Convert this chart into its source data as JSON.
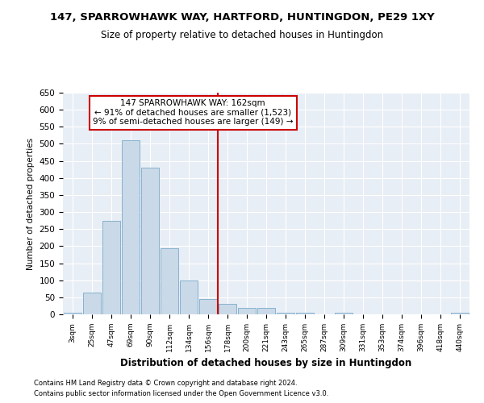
{
  "title": "147, SPARROWHAWK WAY, HARTFORD, HUNTINGDON, PE29 1XY",
  "subtitle": "Size of property relative to detached houses in Huntingdon",
  "xlabel": "Distribution of detached houses by size in Huntingdon",
  "ylabel": "Number of detached properties",
  "bar_color": "#c9d9e8",
  "bar_edge_color": "#7aaac8",
  "background_color": "#e8eef5",
  "grid_color": "#ffffff",
  "vline_color": "#cc0000",
  "vline_x_index": 7.5,
  "annotation_line1": "147 SPARROWHAWK WAY: 162sqm",
  "annotation_line2": "← 91% of detached houses are smaller (1,523)",
  "annotation_line3": "9% of semi-detached houses are larger (149) →",
  "annotation_box_color": "#cc0000",
  "categories": [
    "3sqm",
    "25sqm",
    "47sqm",
    "69sqm",
    "90sqm",
    "112sqm",
    "134sqm",
    "156sqm",
    "178sqm",
    "200sqm",
    "221sqm",
    "243sqm",
    "265sqm",
    "287sqm",
    "309sqm",
    "331sqm",
    "353sqm",
    "374sqm",
    "396sqm",
    "418sqm",
    "440sqm"
  ],
  "values": [
    5,
    65,
    275,
    510,
    430,
    195,
    100,
    45,
    30,
    20,
    20,
    5,
    5,
    0,
    5,
    0,
    0,
    0,
    0,
    0,
    5
  ],
  "ylim": [
    0,
    650
  ],
  "yticks": [
    0,
    50,
    100,
    150,
    200,
    250,
    300,
    350,
    400,
    450,
    500,
    550,
    600,
    650
  ],
  "footer_line1": "Contains HM Land Registry data © Crown copyright and database right 2024.",
  "footer_line2": "Contains public sector information licensed under the Open Government Licence v3.0."
}
